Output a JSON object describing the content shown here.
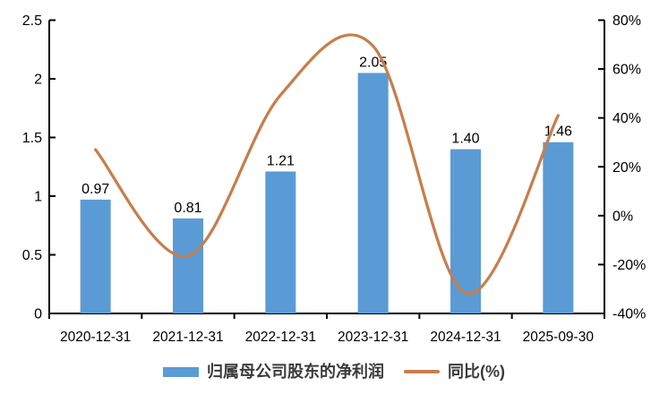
{
  "chart_data": {
    "type": "combo_bar_line",
    "title": "",
    "categories": [
      "2020-12-31",
      "2021-12-31",
      "2022-12-31",
      "2023-12-31",
      "2024-12-31",
      "2025-09-30"
    ],
    "series": [
      {
        "name": "归属母公司股东的净利润",
        "type": "bar",
        "axis": "left",
        "values": [
          0.97,
          0.81,
          1.21,
          2.05,
          1.4,
          1.46
        ],
        "labels": [
          "0.97",
          "0.81",
          "1.21",
          "2.05",
          "1.40",
          "1.46"
        ],
        "color": "#5B9BD5"
      },
      {
        "name": "同比(%)",
        "type": "line",
        "axis": "right",
        "smooth": true,
        "values": [
          27,
          -16.5,
          49.4,
          69.4,
          -31.7,
          41
        ],
        "color": "#C57F4D"
      }
    ],
    "left_axis": {
      "min": 0,
      "max": 2.5,
      "ticks": [
        "0",
        "0.5",
        "1",
        "1.5",
        "2",
        "2.5"
      ]
    },
    "right_axis": {
      "min": -40,
      "max": 80,
      "ticks": [
        "-40%",
        "-20%",
        "0%",
        "20%",
        "40%",
        "60%",
        "80%"
      ]
    },
    "grid": false,
    "legend_position": "bottom"
  },
  "colors": {
    "axis": "#000000",
    "tick_text": "#000000",
    "data_label_text": "#000000",
    "legend_text": "#3b3b3b",
    "background": "#ffffff"
  }
}
